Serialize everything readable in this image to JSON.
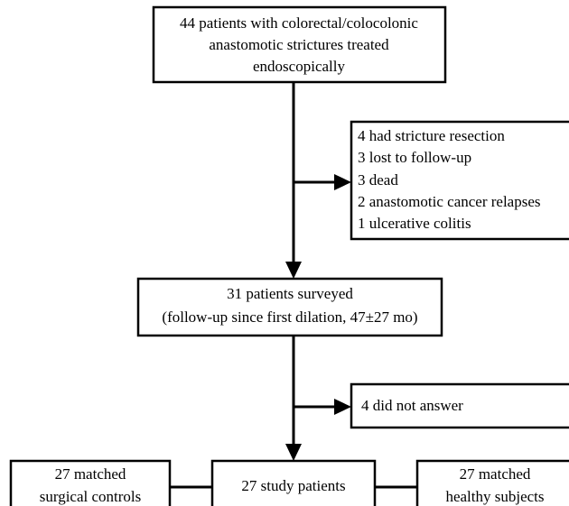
{
  "nodes": [
    {
      "lines": [
        "44 patients with colorectal/colocolonic",
        "anastomotic strictures treated",
        "endoscopically"
      ]
    },
    {
      "lines": [
        "4 had stricture resection",
        "3 lost to follow-up",
        "3 dead",
        "2 anastomotic cancer relapses",
        "1 ulcerative colitis"
      ]
    },
    {
      "lines": [
        "31 patients surveyed",
        "(follow-up since first dilation, 47±27 mo)"
      ]
    },
    {
      "lines": [
        "4 did not answer"
      ]
    },
    {
      "lines": [
        "27 matched",
        "surgical controls"
      ]
    },
    {
      "lines": [
        "27 study patients"
      ]
    },
    {
      "lines": [
        "27 matched",
        "healthy subjects"
      ]
    }
  ]
}
